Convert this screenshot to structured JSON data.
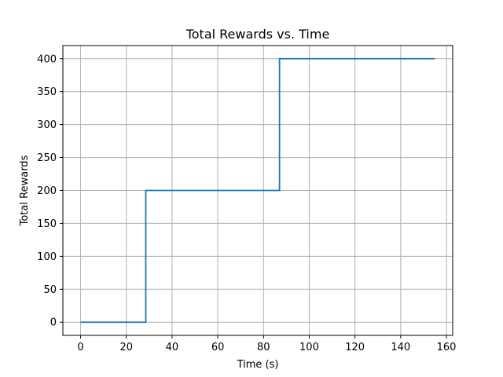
{
  "chart_data": {
    "type": "line",
    "title": "Total Rewards vs. Time",
    "xlabel": "Time (s)",
    "ylabel": "Total Rewards",
    "xlim": [
      -7.75,
      162.75
    ],
    "ylim": [
      -20,
      420
    ],
    "x_ticks": [
      0,
      20,
      40,
      60,
      80,
      100,
      120,
      140,
      160
    ],
    "y_ticks": [
      0,
      50,
      100,
      150,
      200,
      250,
      300,
      350,
      400
    ],
    "grid": true,
    "series": [
      {
        "color": "#1f77b4",
        "step": "post",
        "points": [
          {
            "x": 0,
            "y": 0
          },
          {
            "x": 28.5,
            "y": 200
          },
          {
            "x": 87,
            "y": 400
          },
          {
            "x": 155,
            "y": 400
          }
        ]
      }
    ]
  }
}
